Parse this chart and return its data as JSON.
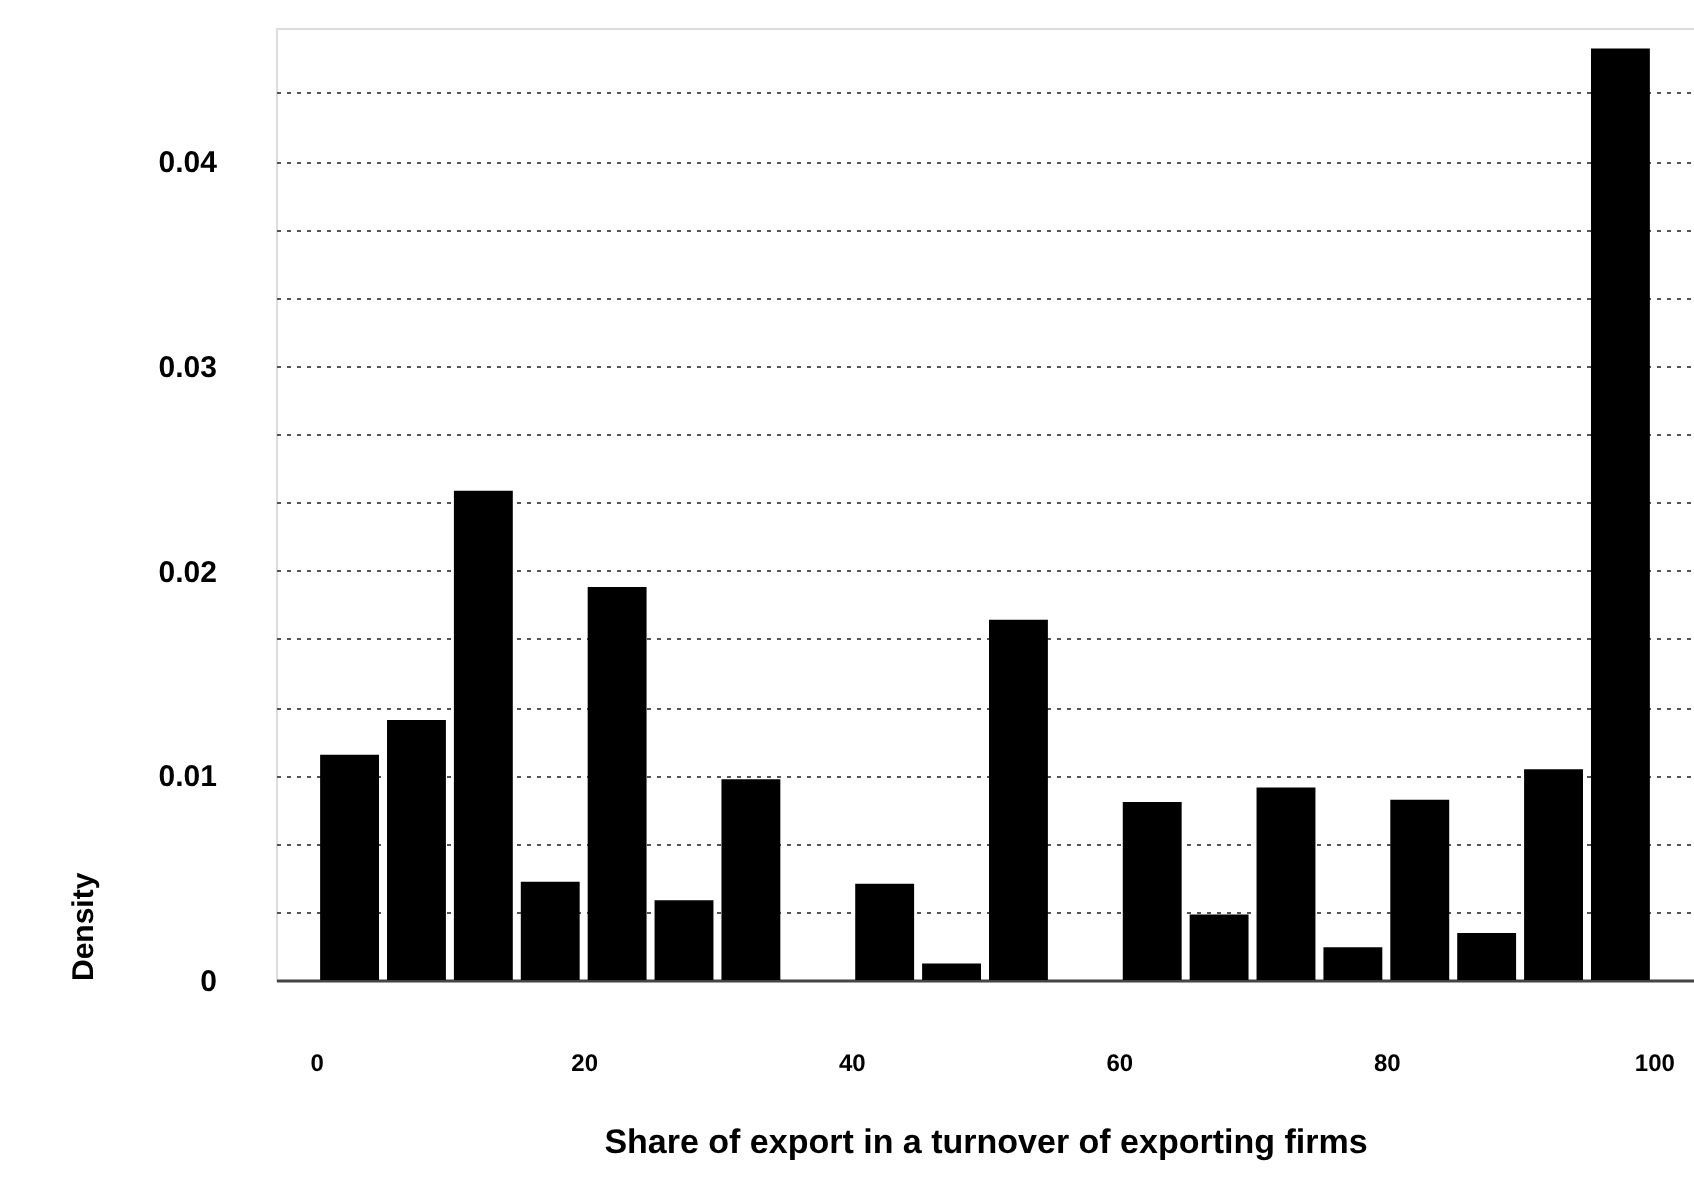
{
  "chart_data": {
    "type": "histogram",
    "xlabel": "Share of export in a turnover of exporting firms",
    "ylabel": "Density",
    "bins": [
      0,
      5,
      10,
      15,
      20,
      25,
      30,
      35,
      40,
      45,
      50,
      55,
      60,
      65,
      70,
      75,
      80,
      85,
      90,
      95,
      100
    ],
    "values": [
      0.011,
      0.0127,
      0.0239,
      0.0048,
      0.0192,
      0.0039,
      0.0098,
      0,
      0.0047,
      0.0008,
      0.0176,
      0,
      0.0087,
      0.0032,
      0.0094,
      0.0016,
      0.0088,
      0.0023,
      0.0103,
      0.0455
    ],
    "color": "#000000",
    "xlim": [
      -3,
      103
    ],
    "xticks": [
      0,
      20,
      40,
      60,
      80,
      100
    ],
    "ylim": [
      0,
      0.0465
    ],
    "yticks": [
      0,
      {
        "value": 0.00333,
        "label": null
      },
      {
        "value": 0.00667,
        "label": null
      },
      0.01,
      {
        "value": 0.01333,
        "label": null
      },
      {
        "value": 0.01667,
        "label": null
      },
      0.02,
      {
        "value": 0.02333,
        "label": null
      },
      {
        "value": 0.02667,
        "label": null
      },
      0.03,
      {
        "value": 0.03333,
        "label": null
      },
      {
        "value": 0.03667,
        "label": null
      },
      0.04,
      {
        "value": 0.04333,
        "label": null
      }
    ],
    "grid": "y"
  }
}
